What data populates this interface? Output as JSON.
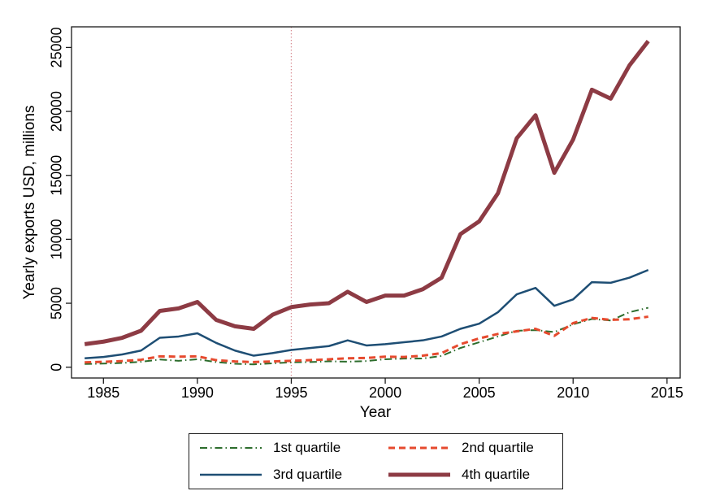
{
  "chart_data": {
    "type": "line",
    "title": "",
    "ylabel": "Yearly exports USD, millions",
    "xlabel": "Year",
    "x": [
      1984,
      1985,
      1986,
      1987,
      1988,
      1989,
      1990,
      1991,
      1992,
      1993,
      1994,
      1995,
      1996,
      1997,
      1998,
      1999,
      2000,
      2001,
      2002,
      2003,
      2004,
      2005,
      2006,
      2007,
      2008,
      2009,
      2010,
      2011,
      2012,
      2013,
      2014
    ],
    "series": [
      {
        "name": "1st quartile",
        "color": "#2d6d2d",
        "pattern": "dash-dot",
        "width": 2,
        "values": [
          250,
          280,
          330,
          420,
          600,
          500,
          620,
          400,
          270,
          220,
          300,
          380,
          400,
          460,
          430,
          480,
          620,
          670,
          680,
          880,
          1500,
          1950,
          2400,
          2850,
          2900,
          2750,
          3350,
          3770,
          3650,
          4300,
          4650
        ]
      },
      {
        "name": "2nd quartile",
        "color": "#e64a2e",
        "pattern": "dashed",
        "width": 3,
        "values": [
          380,
          420,
          480,
          580,
          850,
          820,
          850,
          550,
          450,
          400,
          450,
          500,
          550,
          620,
          700,
          720,
          820,
          800,
          900,
          1100,
          1800,
          2250,
          2600,
          2800,
          3000,
          2450,
          3450,
          3850,
          3700,
          3750,
          3950
        ]
      },
      {
        "name": "3rd quartile",
        "color": "#1e4e74",
        "pattern": "solid",
        "width": 2.5,
        "values": [
          700,
          800,
          1000,
          1300,
          2300,
          2400,
          2650,
          1900,
          1300,
          900,
          1100,
          1350,
          1500,
          1650,
          2100,
          1700,
          1800,
          1950,
          2100,
          2400,
          3000,
          3400,
          4300,
          5700,
          6200,
          4800,
          5300,
          6650,
          6600,
          7000,
          7600
        ]
      },
      {
        "name": "4th quartile",
        "color": "#8d3b44",
        "pattern": "solid",
        "width": 5,
        "values": [
          1800,
          2000,
          2300,
          2850,
          4400,
          4600,
          5100,
          3700,
          3200,
          3000,
          4100,
          4700,
          4900,
          5000,
          5900,
          5100,
          5600,
          5600,
          6100,
          7000,
          10400,
          11400,
          13600,
          17900,
          19700,
          15200,
          17800,
          21700,
          21000,
          23600,
          25500
        ]
      }
    ],
    "x_ticks": [
      1985,
      1990,
      1995,
      2000,
      2005,
      2010,
      2015
    ],
    "y_ticks": [
      0,
      5000,
      10000,
      15000,
      20000,
      25000
    ],
    "xlim": [
      1983.3,
      2015.7
    ],
    "ylim": [
      -845,
      26615
    ],
    "vline": {
      "x": 1995,
      "color": "#d98c92",
      "style": "dotted"
    },
    "grid": false,
    "legend_position": "bottom",
    "frame_color": "#1a1a1a",
    "background": "#ffffff"
  }
}
